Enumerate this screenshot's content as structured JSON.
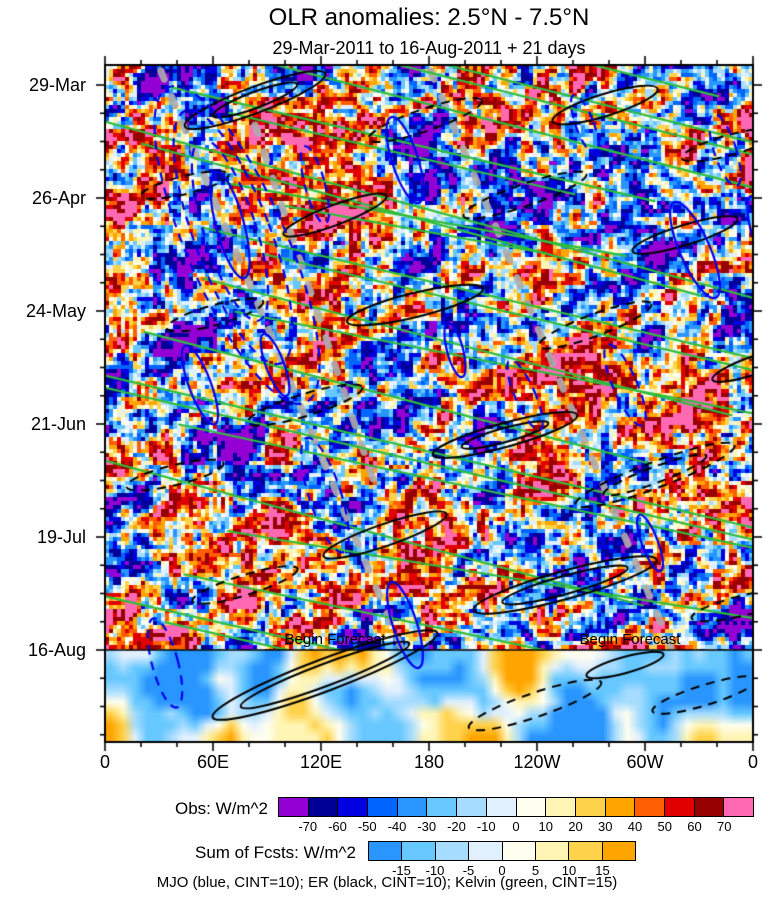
{
  "chart_data": {
    "type": "heatmap",
    "title": "OLR anomalies: 2.5°N - 7.5°N",
    "subtitle": "29-Mar-2011 to 16-Aug-2011 + 21 days",
    "x_axis": {
      "ticks": [
        "0",
        "60E",
        "120E",
        "180",
        "120W",
        "60W",
        "0"
      ]
    },
    "y_axis": {
      "ticks": [
        "29-Mar",
        "26-Apr",
        "24-May",
        "21-Jun",
        "19-Jul",
        "16-Aug"
      ]
    },
    "annotations": [
      "Begin Forecast",
      "Begin Forecast"
    ],
    "obs_colorbar": {
      "label": "Obs: W/m^2",
      "ticks": [
        -70,
        -60,
        -50,
        -40,
        -30,
        -20,
        -10,
        0,
        10,
        20,
        30,
        40,
        50,
        60,
        70
      ],
      "colors": [
        "#9400d3",
        "#000096",
        "#0000e1",
        "#0064ff",
        "#2996ff",
        "#66c8ff",
        "#a5dcff",
        "#e1f0ff",
        "#fffff0",
        "#fff5b4",
        "#ffd24b",
        "#ffa500",
        "#ff5f00",
        "#e10000",
        "#960000",
        "#ff69b4"
      ]
    },
    "fcst_colorbar": {
      "label": "Sum of Fcsts: W/m^2",
      "ticks": [
        -15,
        -10,
        -5,
        0,
        5,
        10,
        15
      ],
      "colors": [
        "#2996ff",
        "#66c8ff",
        "#a5dcff",
        "#e1f0ff",
        "#fffff0",
        "#fff5b4",
        "#ffd24b",
        "#ffa500"
      ]
    },
    "legend_note": "MJO (blue, CINT=10); ER (black, CINT=10); Kelvin (green, CINT=15)",
    "contour_colors": {
      "mjo": "#0000ee",
      "er": "#000000",
      "kelvin": "#2ebd3e"
    }
  }
}
